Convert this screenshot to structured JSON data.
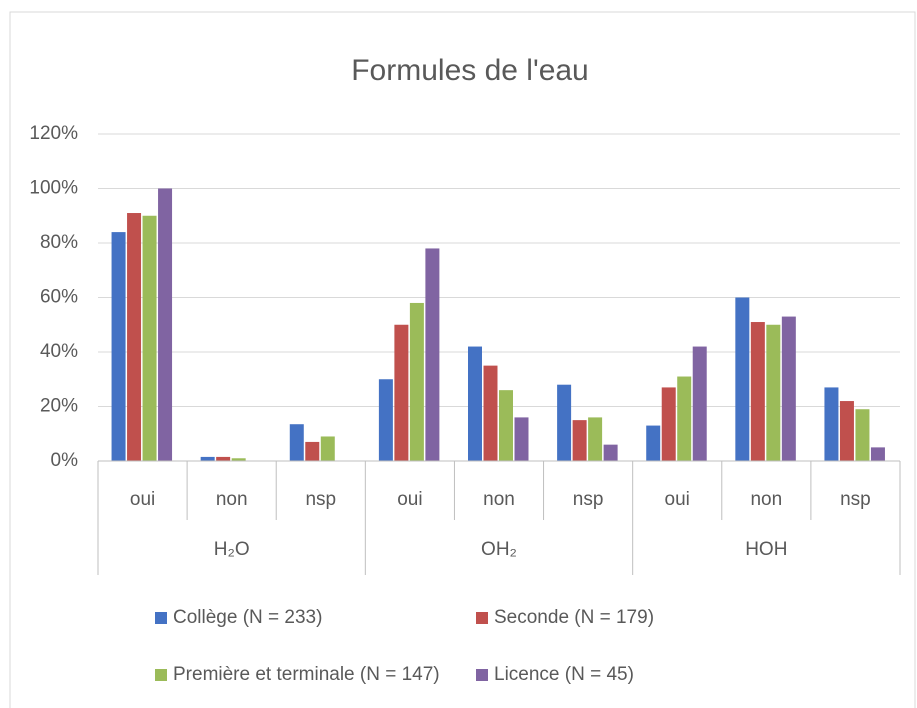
{
  "chart_data": {
    "type": "bar",
    "title": "Formules de l'eau",
    "categories": [
      "oui",
      "non",
      "nsp",
      "oui",
      "non",
      "nsp",
      "oui",
      "non",
      "nsp"
    ],
    "category_groups": [
      "H₂O",
      "OH₂",
      "HOH"
    ],
    "series": [
      {
        "name": "Collège (N = 233)",
        "color": "#4472c4",
        "values": [
          84,
          1.5,
          13.5,
          30,
          42,
          28,
          13,
          60,
          27
        ]
      },
      {
        "name": "Seconde (N = 179)",
        "color": "#c0504d",
        "values": [
          91,
          1.5,
          7,
          50,
          35,
          15,
          27,
          51,
          22
        ]
      },
      {
        "name": "Première et terminale (N = 147)",
        "color": "#9bbb59",
        "values": [
          90,
          1,
          9,
          58,
          26,
          16,
          31,
          50,
          19
        ]
      },
      {
        "name": "Licence (N = 45)",
        "color": "#8064a2",
        "values": [
          100,
          0,
          0,
          78,
          16,
          6,
          42,
          53,
          5
        ]
      }
    ],
    "ylim": [
      0,
      120
    ],
    "yticks": [
      {
        "value": 0,
        "label": "0%"
      },
      {
        "value": 20,
        "label": "20%"
      },
      {
        "value": 40,
        "label": "40%"
      },
      {
        "value": 60,
        "label": "60%"
      },
      {
        "value": 80,
        "label": "80%"
      },
      {
        "value": 100,
        "label": "100%"
      },
      {
        "value": 120,
        "label": "120%"
      }
    ],
    "grid": true
  }
}
